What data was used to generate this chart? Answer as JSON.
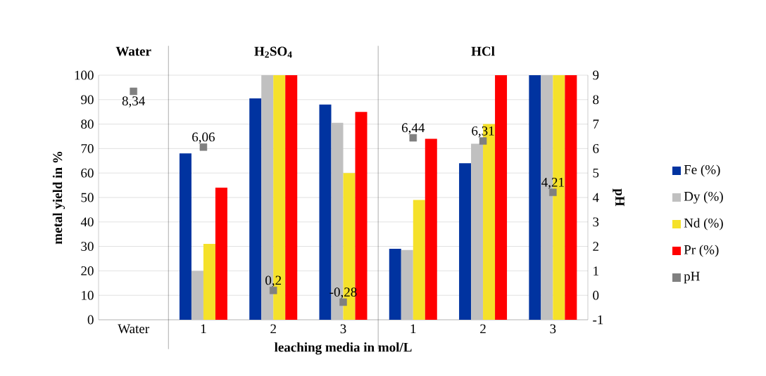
{
  "chart_data": {
    "type": "bar",
    "categories": [
      "Water",
      "1",
      "2",
      "3",
      "1",
      "2",
      "3"
    ],
    "series": [
      {
        "name": "Fe (%)",
        "color": "#0033a0",
        "values": [
          null,
          68,
          90.5,
          88,
          29,
          64,
          100
        ]
      },
      {
        "name": "Dy (%)",
        "color": "#c0c0c0",
        "values": [
          null,
          20,
          100,
          80.5,
          28.5,
          72,
          100
        ]
      },
      {
        "name": "Nd (%)",
        "color": "#f5e12a",
        "values": [
          null,
          31,
          100,
          60,
          49,
          80,
          100
        ]
      },
      {
        "name": "Pr (%)",
        "color": "#ff0000",
        "values": [
          null,
          54,
          100,
          85,
          74,
          100,
          100
        ]
      },
      {
        "name": "pH",
        "type": "scatter",
        "axis": "y2",
        "marker": "square",
        "color": "#808080",
        "values": [
          8.34,
          6.06,
          0.2,
          -0.28,
          6.44,
          6.31,
          4.21
        ],
        "value_labels": [
          "8,34",
          "6,06",
          "0,2",
          "-0,28",
          "6,44",
          "6,31",
          "4,21"
        ]
      }
    ],
    "xlabel": "leaching media in mol/L",
    "ylabel": "metal yield in %",
    "y2label": "pH",
    "ylim": [
      0,
      100
    ],
    "yticks": [
      0,
      10,
      20,
      30,
      40,
      50,
      60,
      70,
      80,
      90,
      100
    ],
    "y2lim": [
      -1,
      9
    ],
    "y2ticks": [
      -1,
      0,
      1,
      2,
      3,
      4,
      5,
      6,
      7,
      8,
      9
    ],
    "annotations": [
      "Water",
      "H$_{2}$SO$_{4}$",
      "HCl"
    ],
    "grid": "y",
    "legend": "right"
  }
}
